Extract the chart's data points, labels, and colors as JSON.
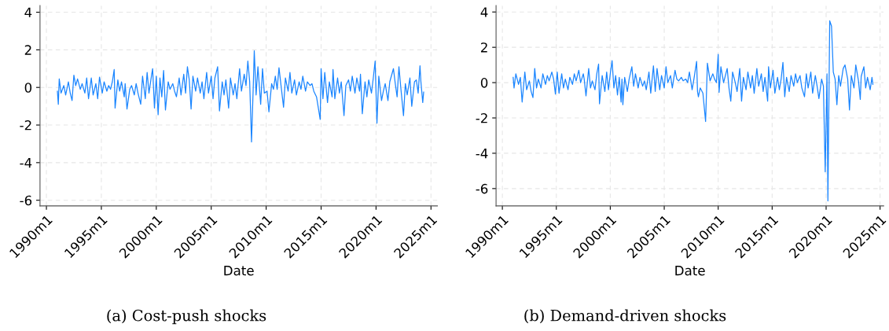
{
  "chart_data": [
    {
      "type": "line",
      "xlabel": "Date",
      "annotations": [
        "(a) Cost-push shocks"
      ],
      "grid": true,
      "line_style": "solid",
      "marker": "none",
      "xlim": [
        "1989-06",
        "2025-08"
      ],
      "ylim": [
        -6.3,
        4.35
      ],
      "xticks": [
        {
          "value": "1990-01",
          "label": "1990m1"
        },
        {
          "value": "1995-01",
          "label": "1995m1"
        },
        {
          "value": "2000-01",
          "label": "2000m1"
        },
        {
          "value": "2005-01",
          "label": "2005m1"
        },
        {
          "value": "2010-01",
          "label": "2010m1"
        },
        {
          "value": "2015-01",
          "label": "2015m1"
        },
        {
          "value": "2020-01",
          "label": "2020m1"
        },
        {
          "value": "2025-01",
          "label": "2025m1"
        }
      ],
      "yticks": [
        -6,
        -4,
        -2,
        0,
        2,
        4
      ],
      "series": [
        {
          "color": "#1a85ff",
          "x": [
            "1991-01",
            "1991-02",
            "1991-03",
            "1991-05",
            "1991-08",
            "1991-10",
            "1992-01",
            "1992-03",
            "1992-05",
            "1992-07",
            "1992-09",
            "1992-11",
            "1993-02",
            "1993-04",
            "1993-07",
            "1993-09",
            "1993-11",
            "1994-02",
            "1994-04",
            "1994-07",
            "1994-09",
            "1994-11",
            "1995-02",
            "1995-04",
            "1995-07",
            "1995-09",
            "1995-11",
            "1996-01",
            "1996-03",
            "1996-04",
            "1996-07",
            "1996-09",
            "1996-11",
            "1997-02",
            "1997-03",
            "1997-05",
            "1997-08",
            "1997-10",
            "1998-01",
            "1998-03",
            "1998-05",
            "1998-08",
            "1998-10",
            "1999-01",
            "1999-03",
            "1999-05",
            "1999-08",
            "1999-09",
            "1999-11",
            "2000-01",
            "2000-03",
            "2000-05",
            "2000-07",
            "2000-09",
            "2000-11",
            "2001-02",
            "2001-04",
            "2001-07",
            "2001-09",
            "2001-11",
            "2002-02",
            "2002-04",
            "2002-07",
            "2002-09",
            "2002-11",
            "2003-01",
            "2003-03",
            "2003-05",
            "2003-08",
            "2003-10",
            "2004-01",
            "2004-03",
            "2004-05",
            "2004-08",
            "2004-10",
            "2005-01",
            "2005-03",
            "2005-05",
            "2005-08",
            "2005-10",
            "2006-01",
            "2006-03",
            "2006-05",
            "2006-08",
            "2006-10",
            "2007-01",
            "2007-03",
            "2007-05",
            "2007-08",
            "2007-10",
            "2008-01",
            "2008-03",
            "2008-05",
            "2008-07",
            "2008-09",
            "2008-11",
            "2008-12",
            "2009-02",
            "2009-04",
            "2009-07",
            "2009-09",
            "2009-11",
            "2010-02",
            "2010-04",
            "2010-07",
            "2010-09",
            "2010-11",
            "2011-01",
            "2011-03",
            "2011-05",
            "2011-08",
            "2011-10",
            "2012-01",
            "2012-03",
            "2012-05",
            "2012-08",
            "2012-10",
            "2013-01",
            "2013-03",
            "2013-05",
            "2013-08",
            "2013-10",
            "2014-01",
            "2014-03",
            "2014-05",
            "2014-08",
            "2014-12",
            "2015-01",
            "2015-03",
            "2015-05",
            "2015-08",
            "2015-10",
            "2016-01",
            "2016-02",
            "2016-04",
            "2016-07",
            "2016-09",
            "2016-11",
            "2017-02",
            "2017-04",
            "2017-07",
            "2017-09",
            "2017-11",
            "2018-02",
            "2018-04",
            "2018-07",
            "2018-08",
            "2018-10",
            "2019-01",
            "2019-03",
            "2019-05",
            "2019-08",
            "2019-10",
            "2019-12",
            "2020-02",
            "2020-04",
            "2020-07",
            "2020-09",
            "2020-11",
            "2021-02",
            "2021-04",
            "2021-08",
            "2021-10",
            "2021-12",
            "2022-02",
            "2022-04",
            "2022-07",
            "2022-09",
            "2022-11",
            "2023-02",
            "2023-04",
            "2023-07",
            "2023-09",
            "2023-11",
            "2024-01",
            "2024-02",
            "2024-04",
            "2024-05"
          ],
          "values": [
            -0.2,
            -0.9,
            0.45,
            -0.3,
            0.1,
            -0.4,
            0.3,
            -0.3,
            -0.7,
            0.65,
            0.1,
            0.45,
            -0.1,
            0.2,
            -0.3,
            0.5,
            -0.6,
            0.5,
            -0.4,
            0.2,
            -0.6,
            0.55,
            -0.3,
            0.3,
            -0.2,
            0.1,
            -0.1,
            0.3,
            0.95,
            -1.1,
            0.4,
            -0.2,
            0.3,
            -0.5,
            0.2,
            -1.15,
            -0.1,
            0.1,
            -0.4,
            0.2,
            -0.3,
            -0.9,
            0.6,
            -0.6,
            0.8,
            -0.3,
            0.7,
            1.0,
            -1.1,
            0.6,
            -1.45,
            0.5,
            -0.5,
            0.9,
            -1.2,
            0.3,
            -0.1,
            0.2,
            -0.2,
            -0.5,
            0.5,
            -0.4,
            0.7,
            -0.3,
            1.1,
            0.4,
            -1.15,
            0.6,
            -0.2,
            0.5,
            -0.3,
            0.3,
            -0.6,
            0.8,
            -0.3,
            0.6,
            -0.6,
            0.5,
            1.1,
            -1.25,
            0.3,
            -0.4,
            0.4,
            -1.1,
            0.5,
            -0.4,
            0.2,
            -0.6,
            1.0,
            -0.2,
            0.7,
            0.1,
            1.4,
            0.3,
            -2.9,
            0.2,
            1.95,
            -0.4,
            1.1,
            -0.9,
            1.0,
            -0.3,
            -0.2,
            -1.3,
            0.2,
            -0.1,
            0.6,
            -0.1,
            1.05,
            0.2,
            -1.05,
            0.5,
            -0.2,
            0.8,
            -0.3,
            0.4,
            -0.4,
            0.3,
            -0.1,
            0.6,
            -0.2,
            0.3,
            0.1,
            0.2,
            -0.2,
            -0.5,
            -1.7,
            1.0,
            -0.6,
            0.8,
            -0.8,
            0.3,
            -0.5,
            0.95,
            -0.6,
            0.5,
            -0.3,
            0.3,
            -1.5,
            0.1,
            0.4,
            -0.2,
            0.6,
            -0.3,
            0.5,
            -0.2,
            0.7,
            -1.4,
            0.3,
            -0.5,
            0.4,
            -0.3,
            0.5,
            1.4,
            -1.9,
            0.6,
            -0.7,
            -0.2,
            0.2,
            -0.7,
            0.3,
            1.0,
            0.2,
            -0.5,
            1.1,
            0.0,
            -1.5,
            0.2,
            -0.4,
            0.5,
            -1.0,
            0.3,
            0.4,
            -0.3,
            1.15,
            0.3,
            -0.8,
            -0.25
          ]
        }
      ]
    },
    {
      "type": "line",
      "xlabel": "Date",
      "annotations": [
        "(b) Demand-driven shocks"
      ],
      "grid": true,
      "line_style": "solid",
      "marker": "none",
      "xlim": [
        "1989-06",
        "2025-05"
      ],
      "ylim": [
        -6.98,
        4.36
      ],
      "xticks": [
        {
          "value": "1990-01",
          "label": "1990m1"
        },
        {
          "value": "1995-01",
          "label": "1995m1"
        },
        {
          "value": "2000-01",
          "label": "2000m1"
        },
        {
          "value": "2005-01",
          "label": "2005m1"
        },
        {
          "value": "2010-01",
          "label": "2010m1"
        },
        {
          "value": "2015-01",
          "label": "2015m1"
        },
        {
          "value": "2020-01",
          "label": "2020m1"
        },
        {
          "value": "2025-01",
          "label": "2025m1"
        }
      ],
      "yticks": [
        -6,
        -4,
        -2,
        0,
        2,
        4
      ],
      "series": [
        {
          "color": "#1a85ff",
          "x": [
            "1991-01",
            "1991-02",
            "1991-04",
            "1991-07",
            "1991-09",
            "1991-11",
            "1992-02",
            "1992-04",
            "1992-07",
            "1992-09",
            "1992-11",
            "1993-01",
            "1993-03",
            "1993-05",
            "1993-08",
            "1993-10",
            "1994-01",
            "1994-03",
            "1994-05",
            "1994-08",
            "1994-10",
            "1994-12",
            "1995-02",
            "1995-04",
            "1995-07",
            "1995-09",
            "1995-11",
            "1996-02",
            "1996-04",
            "1996-07",
            "1996-09",
            "1996-11",
            "1997-02",
            "1997-04",
            "1997-07",
            "1997-08",
            "1997-10",
            "1998-01",
            "1998-03",
            "1998-05",
            "1998-08",
            "1998-10",
            "1998-12",
            "1999-01",
            "1999-04",
            "1999-07",
            "1999-09",
            "1999-11",
            "2000-01",
            "2000-03",
            "2000-05",
            "2000-07",
            "2000-09",
            "2000-11",
            "2001-01",
            "2001-02",
            "2001-03",
            "2001-05",
            "2001-08",
            "2001-10",
            "2002-01",
            "2002-03",
            "2002-05",
            "2002-08",
            "2002-10",
            "2003-01",
            "2003-03",
            "2003-05",
            "2003-08",
            "2003-10",
            "2004-01",
            "2004-03",
            "2004-05",
            "2004-08",
            "2004-10",
            "2005-01",
            "2005-03",
            "2005-05",
            "2005-08",
            "2005-10",
            "2006-01",
            "2006-03",
            "2006-05",
            "2006-08",
            "2006-10",
            "2007-01",
            "2007-03",
            "2007-05",
            "2007-08",
            "2007-10",
            "2008-01",
            "2008-02",
            "2008-03",
            "2008-05",
            "2008-08",
            "2008-11",
            "2009-01",
            "2009-04",
            "2009-07",
            "2009-09",
            "2009-11",
            "2010-01",
            "2010-02",
            "2010-04",
            "2010-07",
            "2010-09",
            "2010-11",
            "2011-01",
            "2011-03",
            "2011-05",
            "2011-08",
            "2011-10",
            "2012-01",
            "2012-03",
            "2012-05",
            "2012-08",
            "2012-10",
            "2013-01",
            "2013-03",
            "2013-05",
            "2013-08",
            "2013-10",
            "2014-01",
            "2014-03",
            "2014-05",
            "2014-08",
            "2014-09",
            "2014-11",
            "2015-02",
            "2015-04",
            "2015-07",
            "2015-09",
            "2015-11",
            "2016-01",
            "2016-03",
            "2016-05",
            "2016-08",
            "2016-10",
            "2017-01",
            "2017-03",
            "2017-05",
            "2017-08",
            "2017-10",
            "2018-01",
            "2018-03",
            "2018-05",
            "2018-08",
            "2018-10",
            "2019-01",
            "2019-03",
            "2019-05",
            "2019-08",
            "2019-10",
            "2019-12",
            "2020-02",
            "2020-03",
            "2020-05",
            "2020-07",
            "2020-09",
            "2020-11",
            "2021-01",
            "2021-03",
            "2021-05",
            "2021-08",
            "2021-10",
            "2022-01",
            "2022-03",
            "2022-05",
            "2022-08",
            "2022-10",
            "2023-01",
            "2023-03",
            "2023-04",
            "2023-07",
            "2023-09",
            "2023-11",
            "2024-02",
            "2024-04",
            "2024-05"
          ],
          "values": [
            0.3,
            -0.3,
            0.5,
            -0.1,
            0.3,
            -1.1,
            0.6,
            -0.4,
            0.1,
            -0.5,
            -0.85,
            0.8,
            -0.3,
            0.2,
            -0.3,
            0.5,
            -0.1,
            0.4,
            0.1,
            0.6,
            0.2,
            -0.65,
            0.6,
            -0.6,
            0.5,
            -0.3,
            0.2,
            -0.4,
            0.3,
            -0.1,
            0.5,
            0.1,
            0.7,
            0.0,
            0.5,
            0.2,
            -0.75,
            0.8,
            -0.3,
            0.1,
            -0.4,
            0.5,
            1.05,
            -1.2,
            0.4,
            -0.5,
            0.6,
            -0.4,
            0.5,
            1.25,
            -0.3,
            0.4,
            -0.7,
            0.3,
            -1.1,
            0.2,
            -1.25,
            0.3,
            -0.5,
            0.2,
            0.9,
            -0.2,
            0.5,
            -0.3,
            0.3,
            -0.2,
            0.1,
            -0.4,
            0.6,
            -0.6,
            0.95,
            -0.5,
            0.8,
            -0.4,
            0.4,
            -0.3,
            0.9,
            0.0,
            0.4,
            -0.3,
            0.7,
            0.2,
            0.1,
            0.3,
            0.1,
            0.2,
            0.0,
            0.6,
            -0.4,
            0.2,
            1.2,
            -0.5,
            -0.8,
            -0.3,
            -0.6,
            -2.2,
            1.1,
            0.1,
            0.5,
            0.2,
            0.0,
            1.6,
            -0.55,
            0.9,
            0.0,
            0.4,
            0.8,
            -0.3,
            -1.05,
            0.6,
            0.0,
            -0.5,
            0.8,
            -1.05,
            0.3,
            -0.4,
            0.6,
            -0.3,
            0.4,
            -0.6,
            0.8,
            -0.2,
            0.5,
            -0.5,
            0.3,
            -1.05,
            0.9,
            -0.3,
            0.7,
            -0.6,
            0.3,
            -0.4,
            0.2,
            1.15,
            -0.8,
            0.3,
            -0.5,
            0.4,
            -0.2,
            0.5,
            0.0,
            0.4,
            -0.3,
            -0.8,
            0.5,
            -0.3,
            0.6,
            -0.6,
            0.4,
            -0.2,
            -0.9,
            0.2,
            -0.2,
            -5.05,
            0.5,
            -6.7,
            3.5,
            3.2,
            0.6,
            0.2,
            -1.25,
            0.4,
            -0.2,
            0.8,
            1.0,
            0.2,
            -1.55,
            0.4,
            -0.3,
            1.0,
            0.1,
            -0.95,
            0.35,
            0.9,
            -0.3,
            0.3,
            -0.4,
            0.3,
            -0.1
          ]
        }
      ]
    }
  ]
}
